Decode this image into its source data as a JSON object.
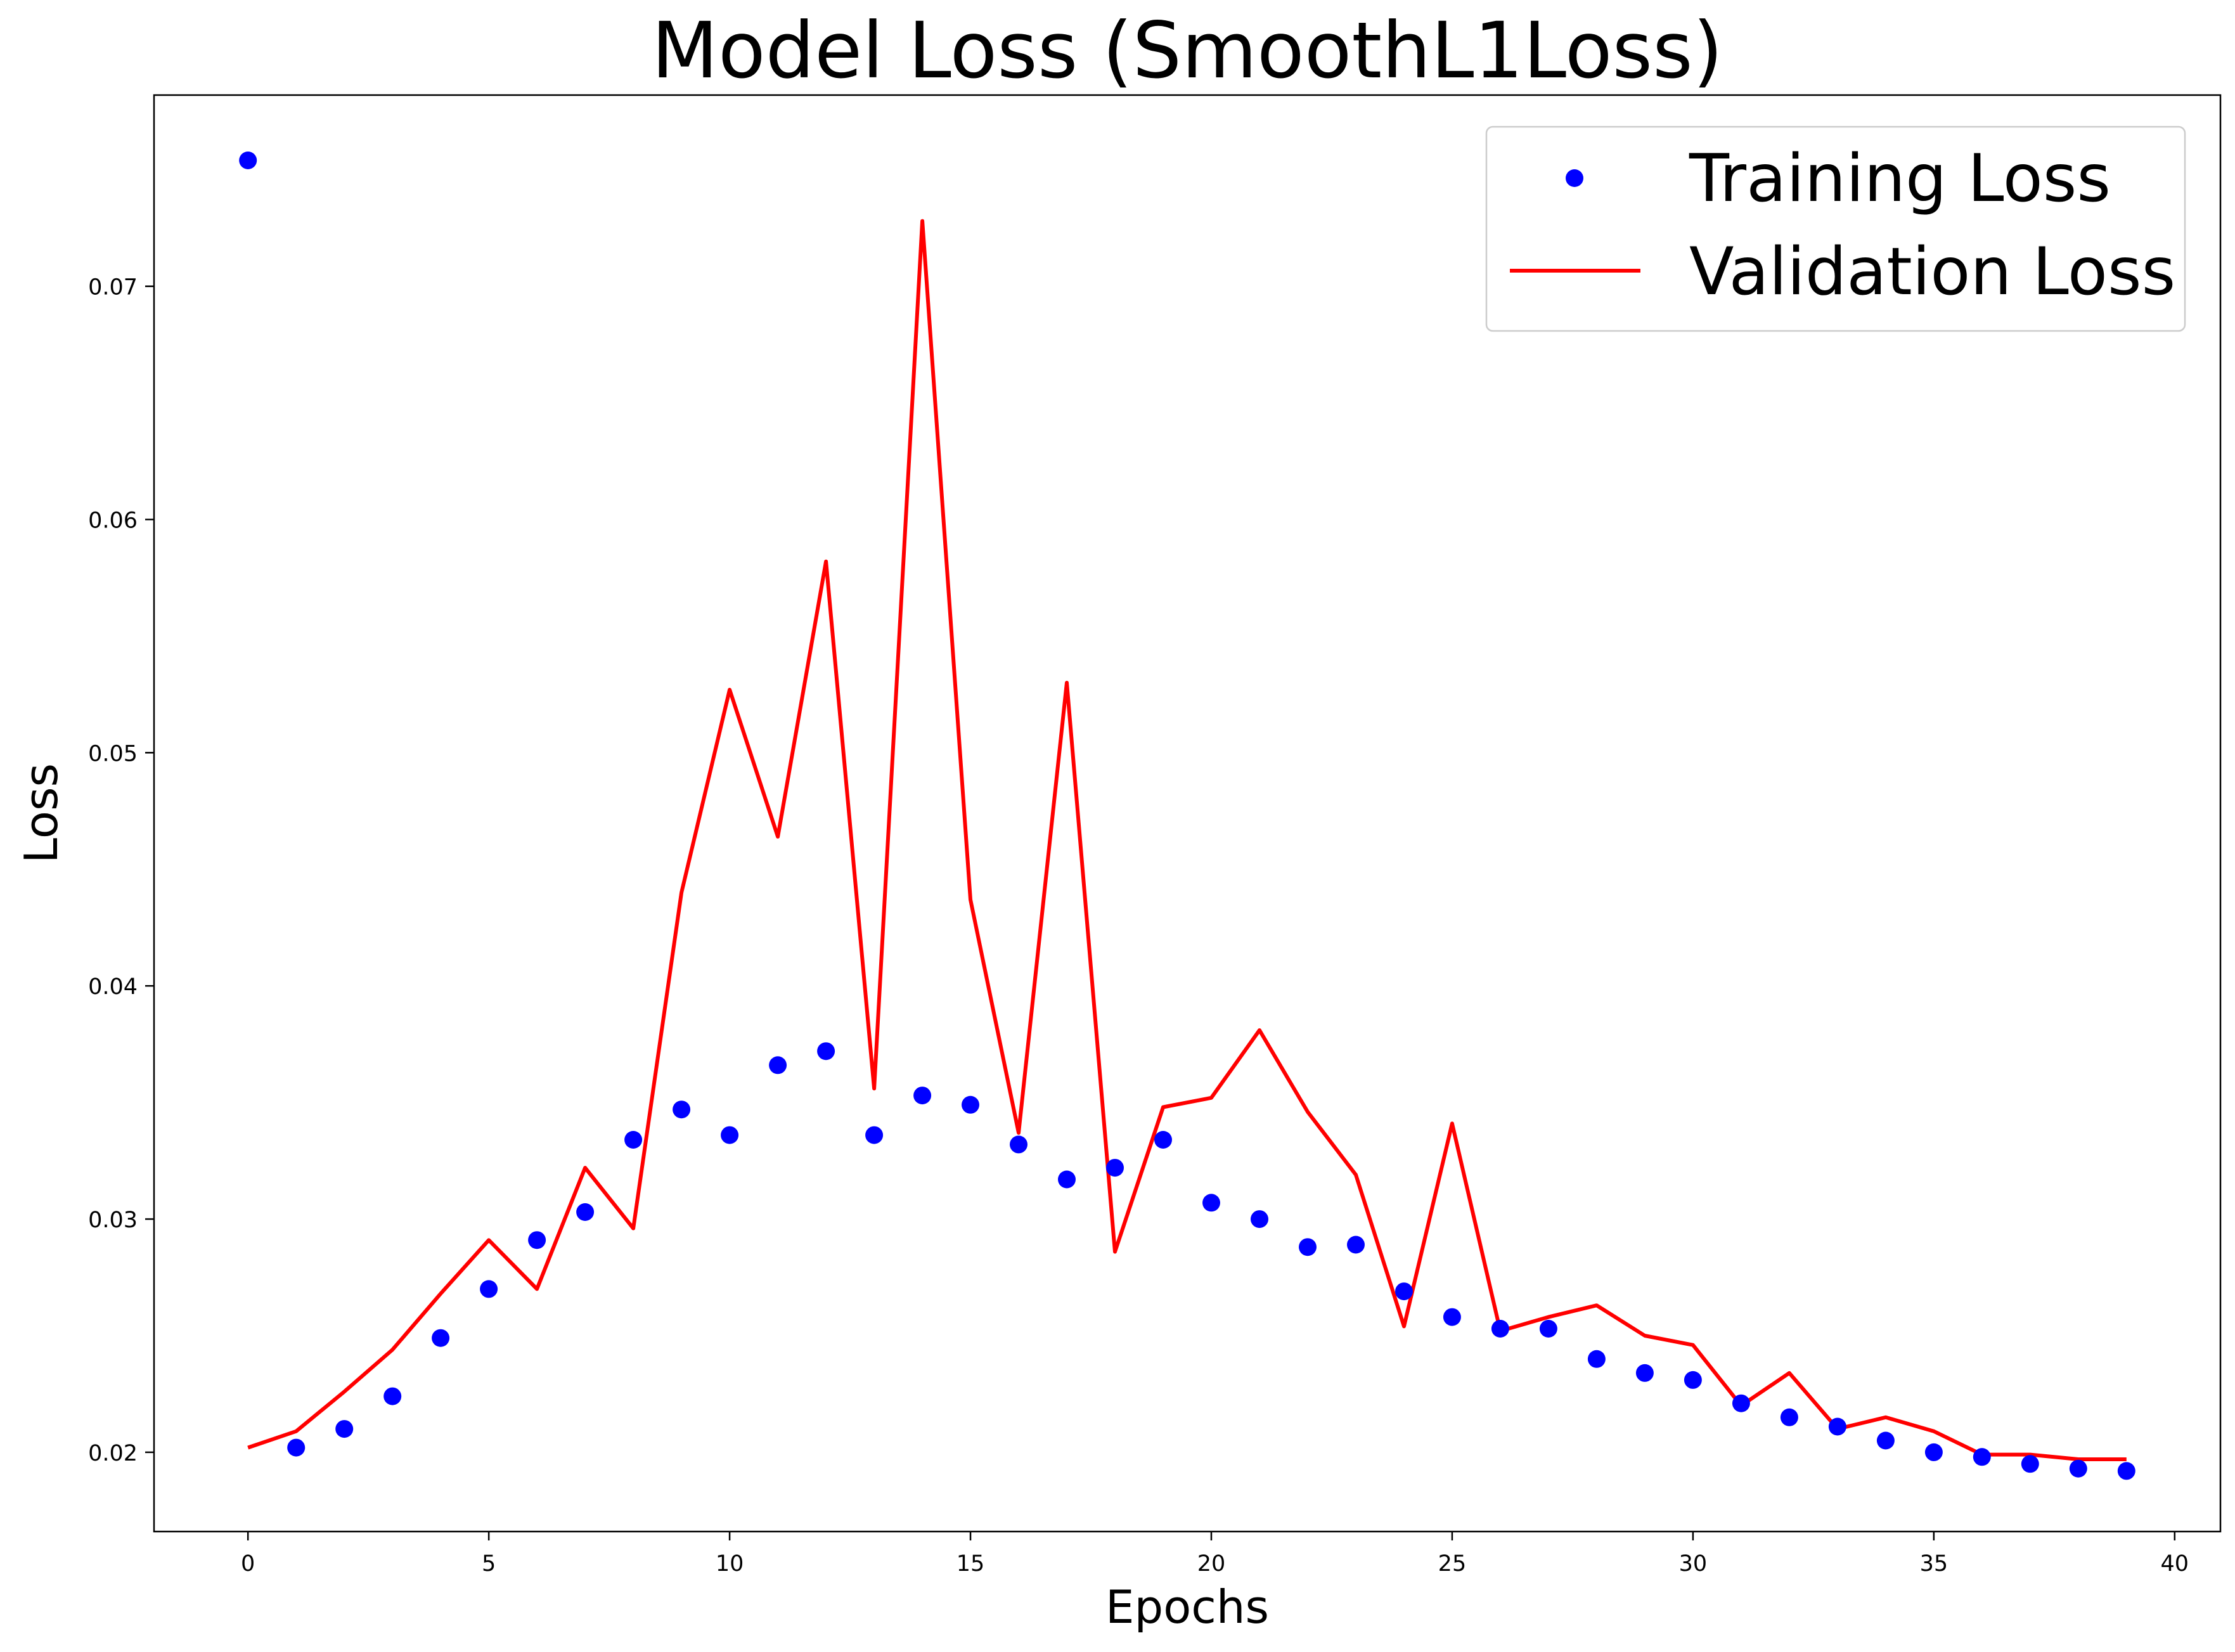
{
  "chart_data": {
    "type": "line",
    "title": "Model Loss (SmoothL1Loss)",
    "xlabel": "Epochs",
    "ylabel": "Loss",
    "xlim": [
      -1.95,
      40.95
    ],
    "ylim": [
      0.0166,
      0.0782
    ],
    "xticks": [
      0,
      5,
      10,
      15,
      20,
      25,
      30,
      35,
      40
    ],
    "xtick_labels": [
      "0",
      "5",
      "10",
      "15",
      "20",
      "25",
      "30",
      "35",
      "40"
    ],
    "yticks": [
      0.02,
      0.03,
      0.04,
      0.05,
      0.06,
      0.07
    ],
    "ytick_labels": [
      "0.02",
      "0.03",
      "0.04",
      "0.05",
      "0.06",
      "0.07"
    ],
    "grid": false,
    "legend_position": "top-right",
    "x": [
      0,
      1,
      2,
      3,
      4,
      5,
      6,
      7,
      8,
      9,
      10,
      11,
      12,
      13,
      14,
      15,
      16,
      17,
      18,
      19,
      20,
      21,
      22,
      23,
      24,
      25,
      26,
      27,
      28,
      29,
      30,
      31,
      32,
      33,
      34,
      35,
      36,
      37,
      38,
      39
    ],
    "series": [
      {
        "name": "Training Loss",
        "style": "markers",
        "color": "#0000ff",
        "values": [
          0.0754,
          0.0202,
          0.021,
          0.0224,
          0.0249,
          0.027,
          0.0291,
          0.0303,
          0.0334,
          0.0347,
          0.0336,
          0.0366,
          0.0372,
          0.0336,
          0.0353,
          0.0349,
          0.0332,
          0.0317,
          0.0322,
          0.0334,
          0.0307,
          0.03,
          0.0288,
          0.0289,
          0.0269,
          0.0258,
          0.0253,
          0.0253,
          0.024,
          0.0234,
          0.0231,
          0.0221,
          0.0215,
          0.0211,
          0.0205,
          0.02,
          0.0198,
          0.0195,
          0.0193,
          0.0192
        ]
      },
      {
        "name": "Validation Loss",
        "style": "line",
        "color": "#ff0000",
        "values": [
          0.0202,
          0.0209,
          0.0226,
          0.0244,
          0.0268,
          0.0291,
          0.027,
          0.0322,
          0.0296,
          0.044,
          0.0527,
          0.0464,
          0.0582,
          0.0356,
          0.0728,
          0.0437,
          0.0337,
          0.053,
          0.0286,
          0.0348,
          0.0352,
          0.0381,
          0.0346,
          0.0319,
          0.0254,
          0.0341,
          0.0252,
          0.0258,
          0.0263,
          0.025,
          0.0246,
          0.022,
          0.0234,
          0.021,
          0.0215,
          0.0209,
          0.0199,
          0.0199,
          0.0197,
          0.0197
        ]
      }
    ]
  }
}
